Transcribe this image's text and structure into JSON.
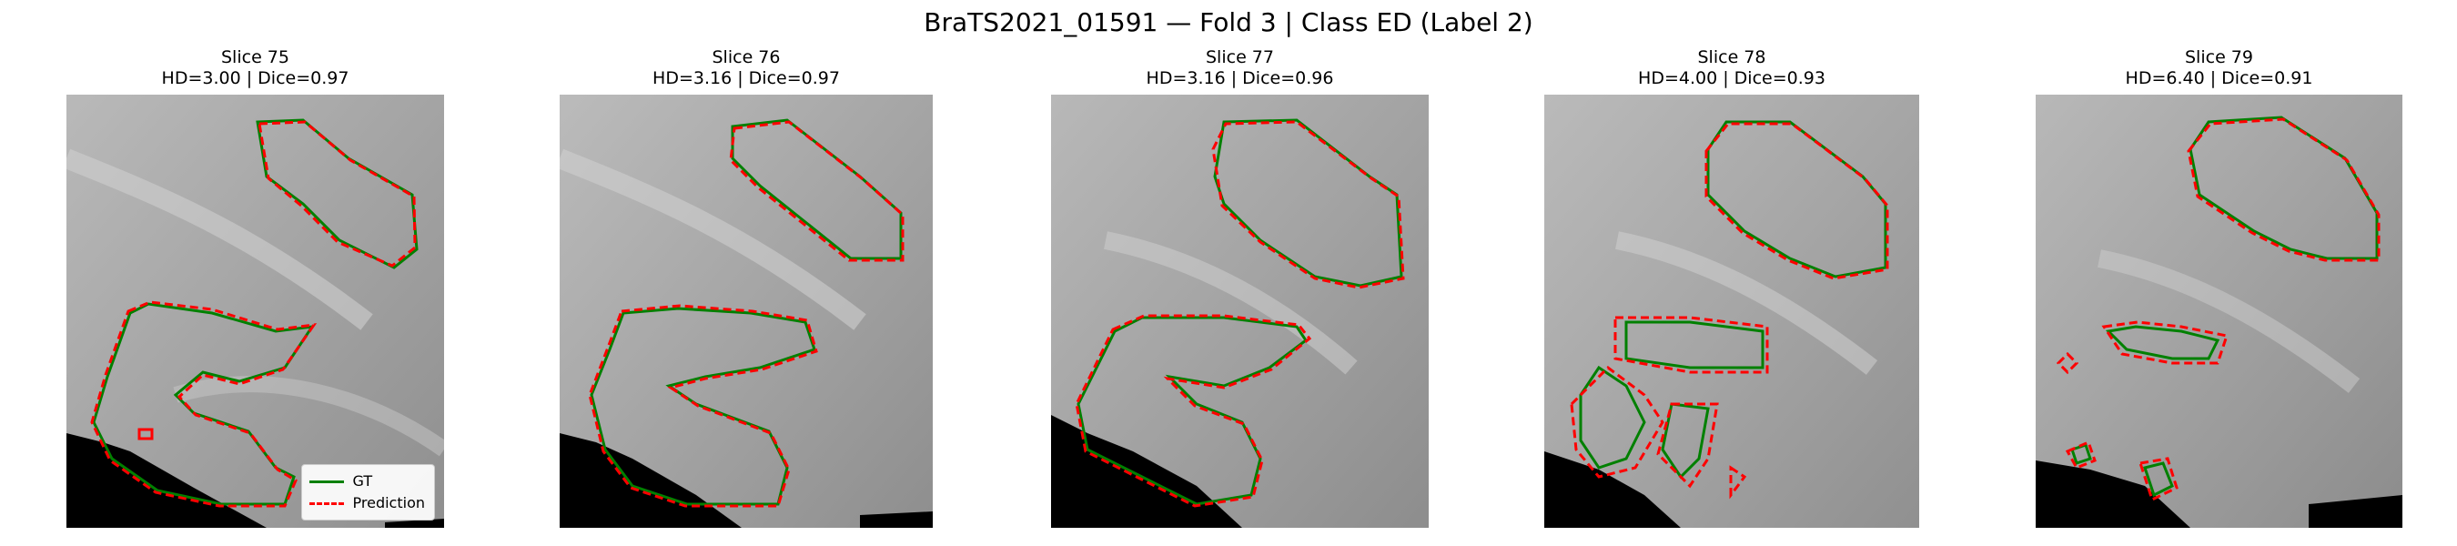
{
  "title": "BraTS2021_01591 — Fold 3 | Class ED (Label 2)",
  "panels": [
    {
      "slice": "Slice 75",
      "metrics": "HD=3.00 | Dice=0.97"
    },
    {
      "slice": "Slice 76",
      "metrics": "HD=3.16 | Dice=0.97"
    },
    {
      "slice": "Slice 77",
      "metrics": "HD=3.16 | Dice=0.96"
    },
    {
      "slice": "Slice 78",
      "metrics": "HD=4.00 | Dice=0.93"
    },
    {
      "slice": "Slice 79",
      "metrics": "HD=6.40 | Dice=0.91"
    }
  ],
  "legend": {
    "gt": "GT",
    "prediction": "Prediction"
  },
  "colors": {
    "gt": "#008000",
    "prediction": "#ff0000",
    "background_mask": "#000000"
  }
}
